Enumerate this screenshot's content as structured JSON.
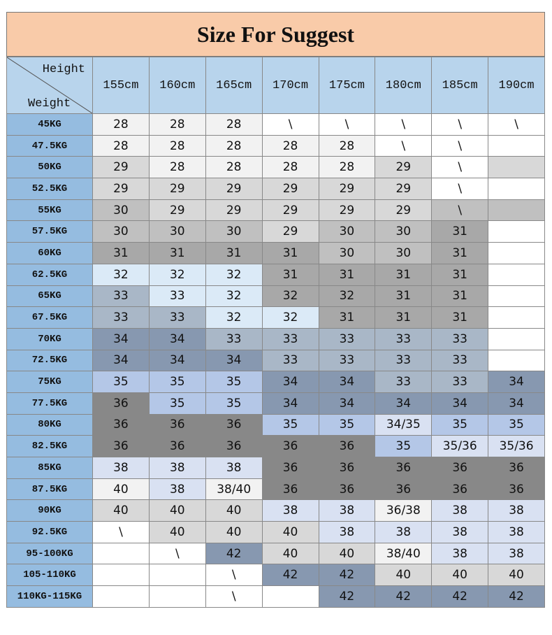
{
  "title": "Size For Suggest",
  "corner": {
    "top": "Height",
    "bottom": "Weight"
  },
  "heights": [
    "155cm",
    "160cm",
    "165cm",
    "170cm",
    "175cm",
    "180cm",
    "185cm",
    "190cm"
  ],
  "rows": [
    {
      "weight": "45KG",
      "sizes": [
        "28",
        "28",
        "28",
        "\\",
        "\\",
        "\\",
        "\\",
        "\\"
      ],
      "shade": [
        "l",
        "l",
        "l",
        "p",
        "p",
        "p",
        "p",
        "p"
      ]
    },
    {
      "weight": "47.5KG",
      "sizes": [
        "28",
        "28",
        "28",
        "28",
        "28",
        "\\",
        "\\",
        ""
      ],
      "shade": [
        "l",
        "l",
        "l",
        "l",
        "l",
        "p",
        "p",
        "p"
      ]
    },
    {
      "weight": "50KG",
      "sizes": [
        "29",
        "28",
        "28",
        "28",
        "28",
        "29",
        "\\",
        ""
      ],
      "shade": [
        "g",
        "l",
        "l",
        "l",
        "l",
        "g",
        "p",
        "g"
      ]
    },
    {
      "weight": "52.5KG",
      "sizes": [
        "29",
        "29",
        "29",
        "29",
        "29",
        "29",
        "\\",
        ""
      ],
      "shade": [
        "g",
        "g",
        "g",
        "g",
        "g",
        "g",
        "p",
        "p"
      ]
    },
    {
      "weight": "55KG",
      "sizes": [
        "30",
        "29",
        "29",
        "29",
        "29",
        "29",
        "\\",
        ""
      ],
      "shade": [
        "m",
        "g",
        "g",
        "g",
        "g",
        "g",
        "m",
        "m"
      ]
    },
    {
      "weight": "57.5KG",
      "sizes": [
        "30",
        "30",
        "30",
        "29",
        "30",
        "30",
        "31",
        ""
      ],
      "shade": [
        "m",
        "m",
        "m",
        "g",
        "m",
        "m",
        "d",
        "p"
      ]
    },
    {
      "weight": "60KG",
      "sizes": [
        "31",
        "31",
        "31",
        "31",
        "30",
        "30",
        "31",
        ""
      ],
      "shade": [
        "d",
        "d",
        "d",
        "d",
        "m",
        "m",
        "d",
        "p"
      ]
    },
    {
      "weight": "62.5KG",
      "sizes": [
        "32",
        "32",
        "32",
        "31",
        "31",
        "31",
        "31",
        ""
      ],
      "shade": [
        "b",
        "b",
        "b",
        "d",
        "d",
        "d",
        "d",
        "p"
      ]
    },
    {
      "weight": "65KG",
      "sizes": [
        "33",
        "33",
        "32",
        "32",
        "32",
        "31",
        "31",
        ""
      ],
      "shade": [
        "s",
        "b",
        "b",
        "d",
        "d",
        "d",
        "d",
        "p"
      ]
    },
    {
      "weight": "67.5KG",
      "sizes": [
        "33",
        "33",
        "32",
        "32",
        "31",
        "31",
        "31",
        ""
      ],
      "shade": [
        "s",
        "s",
        "b",
        "b",
        "d",
        "d",
        "d",
        "p"
      ]
    },
    {
      "weight": "70KG",
      "sizes": [
        "34",
        "34",
        "33",
        "33",
        "33",
        "33",
        "33",
        ""
      ],
      "shade": [
        "n",
        "n",
        "s",
        "s",
        "s",
        "s",
        "s",
        "p"
      ]
    },
    {
      "weight": "72.5KG",
      "sizes": [
        "34",
        "34",
        "34",
        "33",
        "33",
        "33",
        "33",
        ""
      ],
      "shade": [
        "n",
        "n",
        "n",
        "s",
        "s",
        "s",
        "s",
        "p"
      ]
    },
    {
      "weight": "75KG",
      "sizes": [
        "35",
        "35",
        "35",
        "34",
        "34",
        "33",
        "33",
        "34"
      ],
      "shade": [
        "v",
        "v",
        "v",
        "n",
        "n",
        "s",
        "s",
        "n"
      ]
    },
    {
      "weight": "77.5KG",
      "sizes": [
        "36",
        "35",
        "35",
        "34",
        "34",
        "34",
        "34",
        "34"
      ],
      "shade": [
        "x",
        "v",
        "v",
        "n",
        "n",
        "n",
        "n",
        "n"
      ]
    },
    {
      "weight": "80KG",
      "sizes": [
        "36",
        "36",
        "36",
        "35",
        "35",
        "34/35",
        "35",
        "35"
      ],
      "shade": [
        "x",
        "x",
        "x",
        "v",
        "v",
        "e",
        "v",
        "v"
      ]
    },
    {
      "weight": "82.5KG",
      "sizes": [
        "36",
        "36",
        "36",
        "36",
        "36",
        "35",
        "35/36",
        "35/36"
      ],
      "shade": [
        "x",
        "x",
        "x",
        "x",
        "x",
        "v",
        "e",
        "e"
      ]
    },
    {
      "weight": "85KG",
      "sizes": [
        "38",
        "38",
        "38",
        "36",
        "36",
        "36",
        "36",
        "36"
      ],
      "shade": [
        "e",
        "e",
        "e",
        "x",
        "x",
        "x",
        "x",
        "x"
      ]
    },
    {
      "weight": "87.5KG",
      "sizes": [
        "40",
        "38",
        "38/40",
        "36",
        "36",
        "36",
        "36",
        "36"
      ],
      "shade": [
        "l",
        "e",
        "l",
        "x",
        "x",
        "x",
        "x",
        "x"
      ]
    },
    {
      "weight": "90KG",
      "sizes": [
        "40",
        "40",
        "40",
        "38",
        "38",
        "36/38",
        "38",
        "38"
      ],
      "shade": [
        "g",
        "g",
        "g",
        "e",
        "e",
        "l",
        "e",
        "e"
      ]
    },
    {
      "weight": "92.5KG",
      "sizes": [
        "\\",
        "40",
        "40",
        "40",
        "38",
        "38",
        "38",
        "38"
      ],
      "shade": [
        "p",
        "g",
        "g",
        "g",
        "e",
        "e",
        "e",
        "e"
      ]
    },
    {
      "weight": "95-100KG",
      "sizes": [
        "",
        "\\",
        "42",
        "40",
        "40",
        "38/40",
        "38",
        "38"
      ],
      "shade": [
        "p",
        "p",
        "n",
        "g",
        "g",
        "l",
        "e",
        "e"
      ]
    },
    {
      "weight": "105-110KG",
      "sizes": [
        "",
        "",
        "\\",
        "42",
        "42",
        "40",
        "40",
        "40"
      ],
      "shade": [
        "p",
        "p",
        "p",
        "n",
        "n",
        "g",
        "g",
        "g"
      ]
    },
    {
      "weight": "110KG-115KG",
      "sizes": [
        "",
        "",
        "\\",
        "",
        "42",
        "42",
        "42",
        "42"
      ],
      "shade": [
        "p",
        "p",
        "p",
        "p",
        "n",
        "n",
        "n",
        "n"
      ]
    }
  ]
}
